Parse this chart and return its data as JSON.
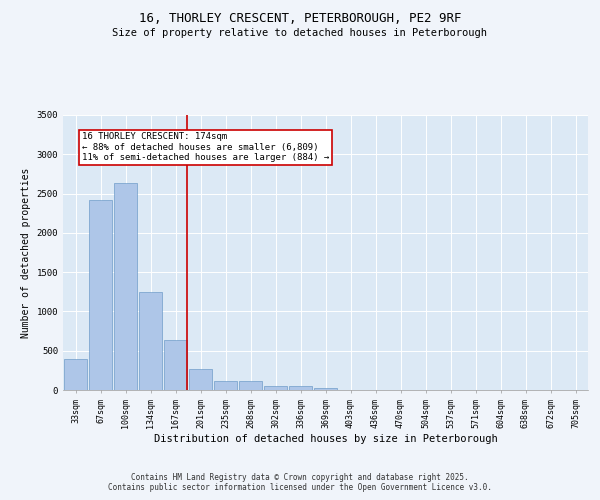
{
  "title_line1": "16, THORLEY CRESCENT, PETERBOROUGH, PE2 9RF",
  "title_line2": "Size of property relative to detached houses in Peterborough",
  "xlabel": "Distribution of detached houses by size in Peterborough",
  "ylabel": "Number of detached properties",
  "categories": [
    "33sqm",
    "67sqm",
    "100sqm",
    "134sqm",
    "167sqm",
    "201sqm",
    "235sqm",
    "268sqm",
    "302sqm",
    "336sqm",
    "369sqm",
    "403sqm",
    "436sqm",
    "470sqm",
    "504sqm",
    "537sqm",
    "571sqm",
    "604sqm",
    "638sqm",
    "672sqm",
    "705sqm"
  ],
  "values": [
    400,
    2420,
    2630,
    1250,
    640,
    265,
    110,
    110,
    55,
    50,
    30,
    0,
    0,
    0,
    0,
    0,
    0,
    0,
    0,
    0,
    0
  ],
  "bar_color": "#aec6e8",
  "bar_edge_color": "#5a8fc0",
  "vline_color": "#cc0000",
  "annotation_text": "16 THORLEY CRESCENT: 174sqm\n← 88% of detached houses are smaller (6,809)\n11% of semi-detached houses are larger (884) →",
  "annotation_box_color": "#cc0000",
  "ylim": [
    0,
    3500
  ],
  "yticks": [
    0,
    500,
    1000,
    1500,
    2000,
    2500,
    3000,
    3500
  ],
  "background_color": "#dce9f5",
  "grid_color": "#ffffff",
  "footer_line1": "Contains HM Land Registry data © Crown copyright and database right 2025.",
  "footer_line2": "Contains public sector information licensed under the Open Government Licence v3.0.",
  "title_fontsize": 9,
  "subtitle_fontsize": 7.5,
  "axis_label_fontsize": 7,
  "tick_fontsize": 6,
  "annotation_fontsize": 6.5,
  "footer_fontsize": 5.5,
  "fig_bg_color": "#f0f4fa"
}
